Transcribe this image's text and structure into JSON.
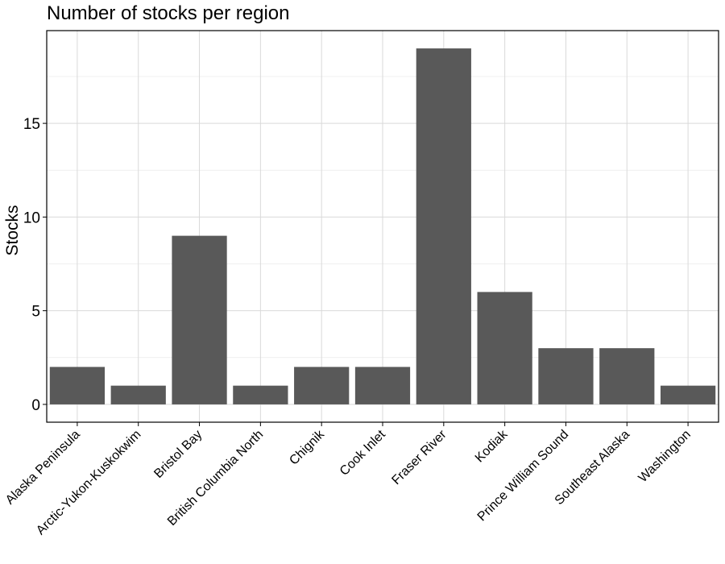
{
  "chart_data": {
    "type": "bar",
    "title": "Number of stocks per region",
    "xlabel": "",
    "ylabel": "Stocks",
    "categories": [
      "Alaska Peninsula",
      "Arctic-Yukon-Kuskokwim",
      "Bristol Bay",
      "British Columbia North",
      "Chignik",
      "Cook Inlet",
      "Fraser River",
      "Kodiak",
      "Prince William Sound",
      "Southeast Alaska",
      "Washington"
    ],
    "values": [
      2,
      1,
      9,
      1,
      2,
      2,
      19,
      6,
      3,
      3,
      1
    ],
    "ylim": [
      -0.95,
      19.95
    ],
    "yticks": [
      0,
      5,
      10,
      15
    ],
    "grid": true,
    "bar_color": "#595959",
    "grid_color": "#d9d9d9",
    "minor_grid_color": "#ebebeb"
  }
}
